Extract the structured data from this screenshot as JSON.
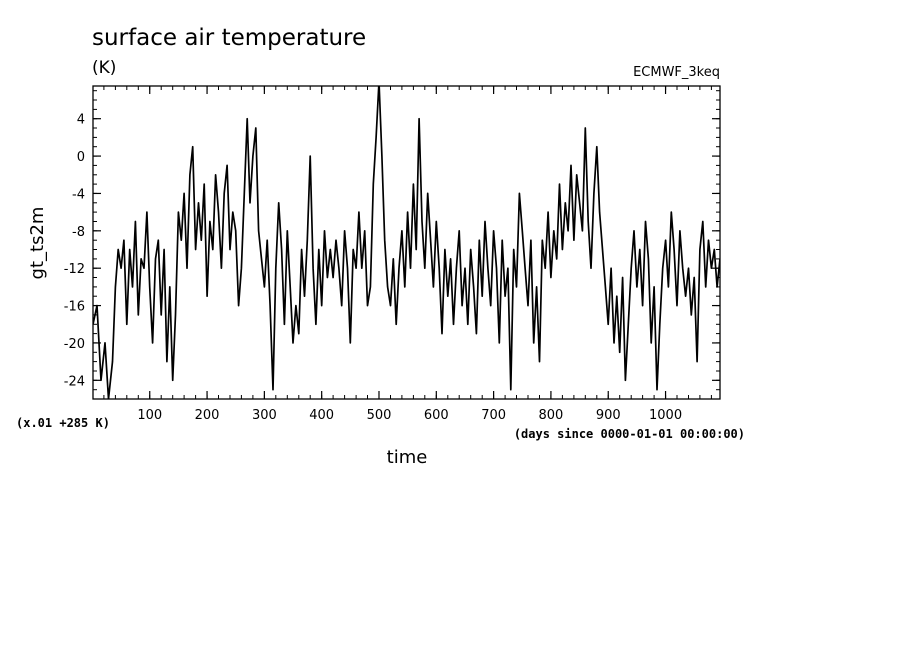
{
  "chart_data": {
    "type": "line",
    "title": "surface air temperature",
    "units": "(K)",
    "run_label": "ECMWF_3keq",
    "xlabel": "time",
    "x_units_note": "(days since 0000-01-01 00:00:00)",
    "ylabel": "gt_ts2m",
    "y_scale_note": "(x.01 +285 K)",
    "xlim": [
      1,
      1095
    ],
    "ylim": [
      -26,
      7.5
    ],
    "x_ticks": [
      100,
      200,
      300,
      400,
      500,
      600,
      700,
      800,
      900,
      1000
    ],
    "y_ticks": [
      4,
      0,
      -4,
      -8,
      -12,
      -16,
      -20,
      -24
    ],
    "x_minor_step": 20,
    "y_minor_step": 1,
    "series": [
      {
        "points": [
          [
            1,
            -18
          ],
          [
            8,
            -16
          ],
          [
            15,
            -24
          ],
          [
            22,
            -20
          ],
          [
            28,
            -26
          ],
          [
            35,
            -22
          ],
          [
            40,
            -14
          ],
          [
            45,
            -10
          ],
          [
            50,
            -12
          ],
          [
            55,
            -9
          ],
          [
            60,
            -18
          ],
          [
            65,
            -10
          ],
          [
            70,
            -14
          ],
          [
            75,
            -7
          ],
          [
            80,
            -17
          ],
          [
            85,
            -11
          ],
          [
            90,
            -12
          ],
          [
            95,
            -6
          ],
          [
            100,
            -14
          ],
          [
            105,
            -20
          ],
          [
            110,
            -11
          ],
          [
            115,
            -9
          ],
          [
            120,
            -17
          ],
          [
            125,
            -10
          ],
          [
            130,
            -22
          ],
          [
            135,
            -14
          ],
          [
            140,
            -24
          ],
          [
            145,
            -17
          ],
          [
            150,
            -6
          ],
          [
            155,
            -9
          ],
          [
            160,
            -4
          ],
          [
            165,
            -12
          ],
          [
            170,
            -2
          ],
          [
            175,
            1
          ],
          [
            180,
            -10
          ],
          [
            185,
            -5
          ],
          [
            190,
            -9
          ],
          [
            195,
            -3
          ],
          [
            200,
            -15
          ],
          [
            205,
            -7
          ],
          [
            210,
            -10
          ],
          [
            215,
            -2
          ],
          [
            220,
            -6
          ],
          [
            225,
            -12
          ],
          [
            230,
            -4
          ],
          [
            235,
            -1
          ],
          [
            240,
            -10
          ],
          [
            245,
            -6
          ],
          [
            250,
            -8
          ],
          [
            255,
            -16
          ],
          [
            260,
            -12
          ],
          [
            265,
            -4
          ],
          [
            270,
            4
          ],
          [
            275,
            -5
          ],
          [
            280,
            0
          ],
          [
            285,
            3
          ],
          [
            290,
            -8
          ],
          [
            295,
            -11
          ],
          [
            300,
            -14
          ],
          [
            305,
            -9
          ],
          [
            310,
            -16
          ],
          [
            315,
            -25
          ],
          [
            320,
            -12
          ],
          [
            325,
            -5
          ],
          [
            330,
            -10
          ],
          [
            335,
            -18
          ],
          [
            340,
            -8
          ],
          [
            345,
            -14
          ],
          [
            350,
            -20
          ],
          [
            355,
            -16
          ],
          [
            360,
            -19
          ],
          [
            365,
            -10
          ],
          [
            370,
            -15
          ],
          [
            375,
            -9
          ],
          [
            380,
            0
          ],
          [
            385,
            -12
          ],
          [
            390,
            -18
          ],
          [
            395,
            -10
          ],
          [
            400,
            -16
          ],
          [
            405,
            -8
          ],
          [
            410,
            -13
          ],
          [
            415,
            -10
          ],
          [
            420,
            -13
          ],
          [
            425,
            -9
          ],
          [
            430,
            -12
          ],
          [
            435,
            -16
          ],
          [
            440,
            -8
          ],
          [
            445,
            -12
          ],
          [
            450,
            -20
          ],
          [
            455,
            -10
          ],
          [
            460,
            -12
          ],
          [
            465,
            -6
          ],
          [
            470,
            -12
          ],
          [
            475,
            -8
          ],
          [
            480,
            -16
          ],
          [
            485,
            -14
          ],
          [
            490,
            -3
          ],
          [
            495,
            2
          ],
          [
            500,
            8
          ],
          [
            505,
            0
          ],
          [
            510,
            -9
          ],
          [
            515,
            -14
          ],
          [
            520,
            -16
          ],
          [
            525,
            -11
          ],
          [
            530,
            -18
          ],
          [
            535,
            -12
          ],
          [
            540,
            -8
          ],
          [
            545,
            -14
          ],
          [
            550,
            -6
          ],
          [
            555,
            -12
          ],
          [
            560,
            -3
          ],
          [
            565,
            -10
          ],
          [
            570,
            4
          ],
          [
            575,
            -7
          ],
          [
            580,
            -12
          ],
          [
            585,
            -4
          ],
          [
            590,
            -9
          ],
          [
            595,
            -14
          ],
          [
            600,
            -7
          ],
          [
            605,
            -12
          ],
          [
            610,
            -19
          ],
          [
            615,
            -10
          ],
          [
            620,
            -15
          ],
          [
            625,
            -11
          ],
          [
            630,
            -18
          ],
          [
            635,
            -12
          ],
          [
            640,
            -8
          ],
          [
            645,
            -16
          ],
          [
            650,
            -12
          ],
          [
            655,
            -18
          ],
          [
            660,
            -10
          ],
          [
            665,
            -14
          ],
          [
            670,
            -19
          ],
          [
            675,
            -9
          ],
          [
            680,
            -15
          ],
          [
            685,
            -7
          ],
          [
            690,
            -12
          ],
          [
            695,
            -16
          ],
          [
            700,
            -8
          ],
          [
            705,
            -12
          ],
          [
            710,
            -20
          ],
          [
            715,
            -9
          ],
          [
            720,
            -15
          ],
          [
            725,
            -12
          ],
          [
            730,
            -25
          ],
          [
            735,
            -10
          ],
          [
            740,
            -14
          ],
          [
            745,
            -4
          ],
          [
            750,
            -8
          ],
          [
            755,
            -12
          ],
          [
            760,
            -16
          ],
          [
            765,
            -9
          ],
          [
            770,
            -20
          ],
          [
            775,
            -14
          ],
          [
            780,
            -22
          ],
          [
            785,
            -9
          ],
          [
            790,
            -12
          ],
          [
            795,
            -6
          ],
          [
            800,
            -13
          ],
          [
            805,
            -8
          ],
          [
            810,
            -11
          ],
          [
            815,
            -3
          ],
          [
            820,
            -10
          ],
          [
            825,
            -5
          ],
          [
            830,
            -8
          ],
          [
            835,
            -1
          ],
          [
            840,
            -9
          ],
          [
            845,
            -2
          ],
          [
            850,
            -5
          ],
          [
            855,
            -8
          ],
          [
            860,
            3
          ],
          [
            865,
            -7
          ],
          [
            870,
            -12
          ],
          [
            875,
            -4
          ],
          [
            880,
            1
          ],
          [
            885,
            -6
          ],
          [
            890,
            -10
          ],
          [
            895,
            -14
          ],
          [
            900,
            -18
          ],
          [
            905,
            -12
          ],
          [
            910,
            -20
          ],
          [
            915,
            -15
          ],
          [
            920,
            -21
          ],
          [
            925,
            -13
          ],
          [
            930,
            -24
          ],
          [
            935,
            -18
          ],
          [
            940,
            -12
          ],
          [
            945,
            -8
          ],
          [
            950,
            -14
          ],
          [
            955,
            -10
          ],
          [
            960,
            -16
          ],
          [
            965,
            -7
          ],
          [
            970,
            -11
          ],
          [
            975,
            -20
          ],
          [
            980,
            -14
          ],
          [
            985,
            -25
          ],
          [
            990,
            -18
          ],
          [
            995,
            -12
          ],
          [
            1000,
            -9
          ],
          [
            1005,
            -14
          ],
          [
            1010,
            -6
          ],
          [
            1015,
            -10
          ],
          [
            1020,
            -16
          ],
          [
            1025,
            -8
          ],
          [
            1030,
            -12
          ],
          [
            1035,
            -15
          ],
          [
            1040,
            -12
          ],
          [
            1045,
            -17
          ],
          [
            1050,
            -13
          ],
          [
            1055,
            -22
          ],
          [
            1060,
            -10
          ],
          [
            1065,
            -7
          ],
          [
            1070,
            -14
          ],
          [
            1075,
            -9
          ],
          [
            1080,
            -12
          ],
          [
            1085,
            -10
          ],
          [
            1090,
            -14
          ],
          [
            1095,
            -11
          ]
        ]
      }
    ]
  }
}
